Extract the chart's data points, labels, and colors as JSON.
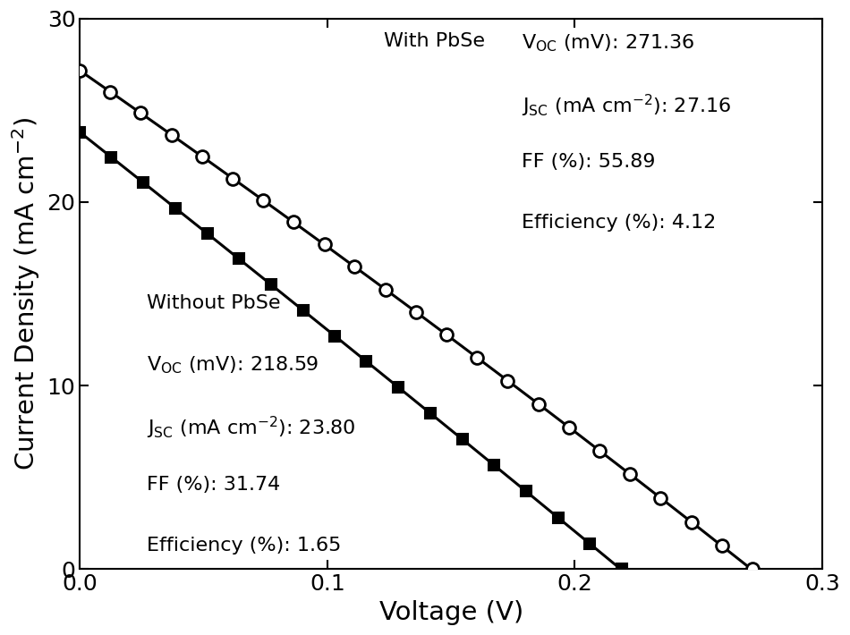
{
  "xlabel": "Voltage (V)",
  "ylabel": "Current Density (mA cm$^{-2}$)",
  "xlim": [
    0,
    0.3
  ],
  "ylim": [
    0,
    30
  ],
  "xticks": [
    0.0,
    0.1,
    0.2,
    0.3
  ],
  "yticks": [
    0,
    10,
    20,
    30
  ],
  "with_pbse": {
    "Voc_mV": 271.36,
    "Jsc": 27.16,
    "FF": 55.89,
    "Efficiency": 4.12,
    "n_ideality": 80,
    "Rs": 0.0,
    "color": "black",
    "marker": "o",
    "markersize": 10,
    "linewidth": 2.2,
    "n_markers": 23
  },
  "without_pbse": {
    "Voc_mV": 218.59,
    "Jsc": 23.8,
    "FF": 31.74,
    "Efficiency": 1.65,
    "n_ideality": 200,
    "Rs": 0.0,
    "color": "black",
    "marker": "s",
    "markersize": 8,
    "linewidth": 2.2,
    "n_markers": 18
  },
  "figsize": [
    9.5,
    7.1
  ],
  "dpi": 100,
  "fontsize_labels": 21,
  "fontsize_ticks": 18,
  "fontsize_annotations": 16
}
